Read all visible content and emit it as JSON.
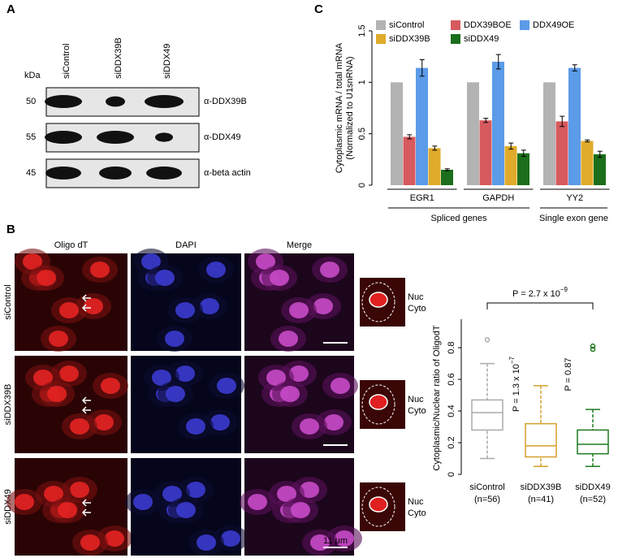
{
  "panel_labels": [
    "A",
    "B",
    "C"
  ],
  "blot": {
    "kda": "kDa",
    "lanes": [
      "siControl",
      "siDDX39B",
      "siDDX49"
    ],
    "rows": [
      {
        "kda": "50",
        "antibody": "α-DDX39B"
      },
      {
        "kda": "55",
        "antibody": "α-DDX49"
      },
      {
        "kda": "45",
        "antibody": "α-beta actin"
      }
    ]
  },
  "micrographs": {
    "columns": [
      "Oligo dT",
      "DAPI",
      "Merge"
    ],
    "rows": [
      "siControl",
      "siDDX39B",
      "siDDX49"
    ],
    "inset_labels": [
      "Nuc",
      "Cyto"
    ],
    "scale_bar": "11 μm"
  },
  "chart_data": [
    {
      "type": "bar",
      "ylabel": [
        "Cytoplasmic mRNA / total mRNA",
        "(Normalized to U1snRNA)"
      ],
      "categories": [
        "EGR1",
        "GAPDH",
        "YY2"
      ],
      "category_groups": [
        "Spliced genes",
        "Single exon gene"
      ],
      "series": [
        {
          "name": "siControl",
          "color": "#b3b3b3",
          "values": [
            1,
            1,
            1
          ],
          "errors": [
            null,
            null,
            null
          ]
        },
        {
          "name": "DDX39BOE",
          "color": "#d65a5e",
          "values": [
            0.47,
            0.63,
            0.62
          ],
          "errors": [
            0.02,
            0.02,
            0.05
          ]
        },
        {
          "name": "DDX49OE",
          "color": "#5b9be8",
          "values": [
            1.14,
            1.2,
            1.14
          ],
          "errors": [
            0.08,
            0.07,
            0.03
          ]
        },
        {
          "name": "siDDX39B",
          "color": "#e0ab2a",
          "values": [
            0.36,
            0.38,
            0.43
          ],
          "errors": [
            0.02,
            0.03,
            0.01
          ]
        },
        {
          "name": "siDDX49",
          "color": "#1b6e1b",
          "values": [
            0.15,
            0.31,
            0.3
          ],
          "errors": [
            0.01,
            0.03,
            0.03
          ]
        }
      ],
      "ylim": [
        0,
        1.5
      ],
      "yticks": [
        0,
        0.5,
        1,
        1.5
      ]
    },
    {
      "type": "box",
      "ylabel": "Cytoplasmic/Nuclear ratio of OligodT",
      "categories": [
        "siControl",
        "siDDX39B",
        "siDDX49"
      ],
      "n_labels": [
        "(n=56)",
        "(n=41)",
        "(n=52)"
      ],
      "colors": [
        "#aaaaaa",
        "#d4a02a",
        "#1f7a1f"
      ],
      "boxes": [
        {
          "whisker_low": 0.1,
          "q1": 0.28,
          "median": 0.39,
          "q3": 0.47,
          "whisker_high": 0.7,
          "outliers": [
            0.85
          ]
        },
        {
          "whisker_low": 0.05,
          "q1": 0.11,
          "median": 0.18,
          "q3": 0.32,
          "whisker_high": 0.56,
          "outliers": []
        },
        {
          "whisker_low": 0.05,
          "q1": 0.13,
          "median": 0.19,
          "q3": 0.28,
          "whisker_high": 0.41,
          "outliers": [
            0.79,
            0.81
          ]
        }
      ],
      "ylim": [
        0,
        0.98
      ],
      "yticks": [
        0,
        0.2,
        0.4,
        0.6,
        0.8
      ],
      "annotations": [
        {
          "text": "P = 2.7 x 10",
          "exponent": "−9"
        },
        {
          "text": "P = 1.3 x 10",
          "exponent": "−7"
        },
        {
          "text": "P = 0.87"
        }
      ]
    }
  ]
}
